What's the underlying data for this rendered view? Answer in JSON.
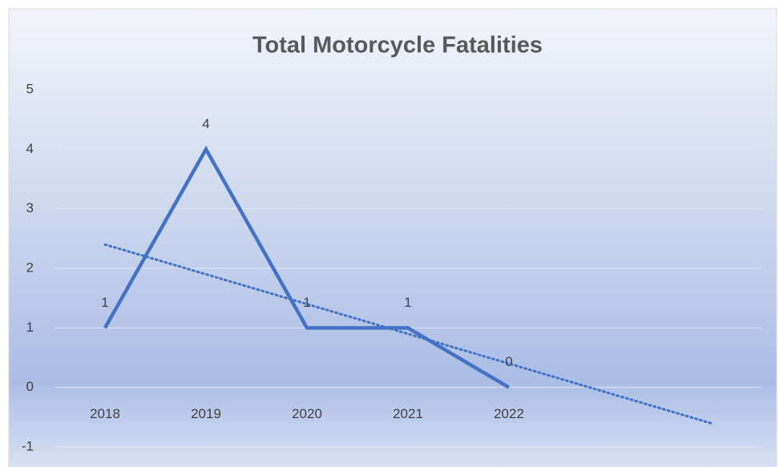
{
  "chart_data": {
    "type": "line",
    "title": "Total Motorcycle Fatalities",
    "categories": [
      "2018",
      "2019",
      "2020",
      "2021",
      "2022"
    ],
    "values": [
      1,
      4,
      1,
      1,
      0
    ],
    "color": "#4472c4",
    "ylim": [
      -1,
      5
    ],
    "yticks": [
      -1,
      0,
      1,
      2,
      3,
      4,
      5
    ],
    "grid": true,
    "data_labels": true,
    "trendline": {
      "kind": "linear",
      "forward_periods": 2,
      "color": "#4472c4"
    }
  }
}
